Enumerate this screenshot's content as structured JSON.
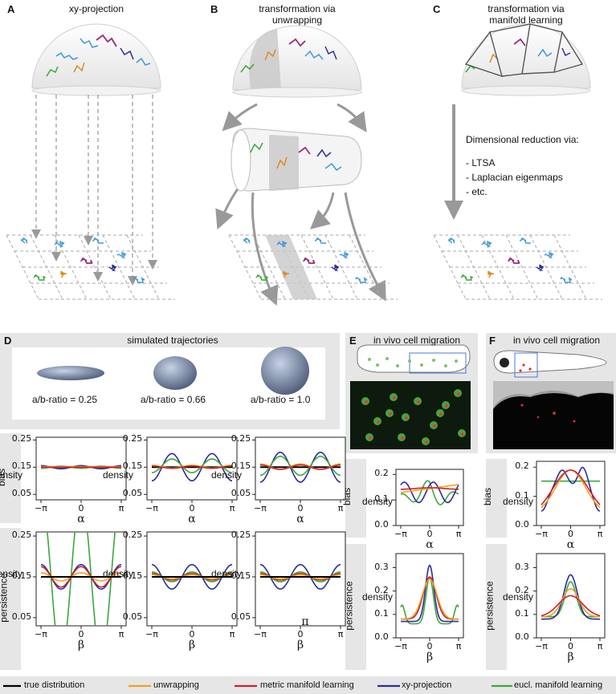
{
  "panels": {
    "A": {
      "letter": "A",
      "title": "xy-projection"
    },
    "B": {
      "letter": "B",
      "title_line1": "transformation via",
      "title_line2": "unwrapping"
    },
    "C": {
      "letter": "C",
      "title_line1": "transformation via",
      "title_line2": "manifold learning",
      "reduction_title": "Dimensional reduction via:",
      "methods": [
        "- LTSA",
        "- Laplacian eigenmaps",
        "- etc."
      ]
    },
    "D": {
      "letter": "D",
      "header": "simulated trajectories",
      "ratios": [
        "a/b-ratio = 0.25",
        "a/b-ratio = 0.66",
        "a/b-ratio = 1.0"
      ]
    },
    "E": {
      "letter": "E",
      "title": "in vivo cell migration"
    },
    "F": {
      "letter": "F",
      "title": "in vivo cell migration"
    }
  },
  "row_labels": {
    "bias": "bias",
    "persistence": "persistence"
  },
  "axis_labels": {
    "density": "density",
    "alpha": "α",
    "beta": "β",
    "pi_mark": "π"
  },
  "ticks": {
    "x": [
      "−π",
      "0",
      "π"
    ],
    "y_sim": [
      "0.25",
      "0.15",
      "0.05"
    ],
    "y_E_bias": [
      "0.2",
      "0.1",
      "0.0"
    ],
    "y_E_pers": [
      "0.3",
      "0.2",
      "0.1",
      "0.0"
    ],
    "y_F_bias": [
      "0.2",
      "0.1",
      "0.0"
    ],
    "y_F_pers": [
      "0.3",
      "0.2",
      "0.1",
      "0.0"
    ]
  },
  "legend": [
    {
      "label": "true distribution",
      "color": "#000000"
    },
    {
      "label": "unwrapping",
      "color": "#f0a020"
    },
    {
      "label": "metric manifold learning",
      "color": "#d0202a"
    },
    {
      "label": "xy-projection",
      "color": "#2c2c9c"
    },
    {
      "label": "eucl. manifold learning",
      "color": "#3aa83a"
    }
  ]
}
